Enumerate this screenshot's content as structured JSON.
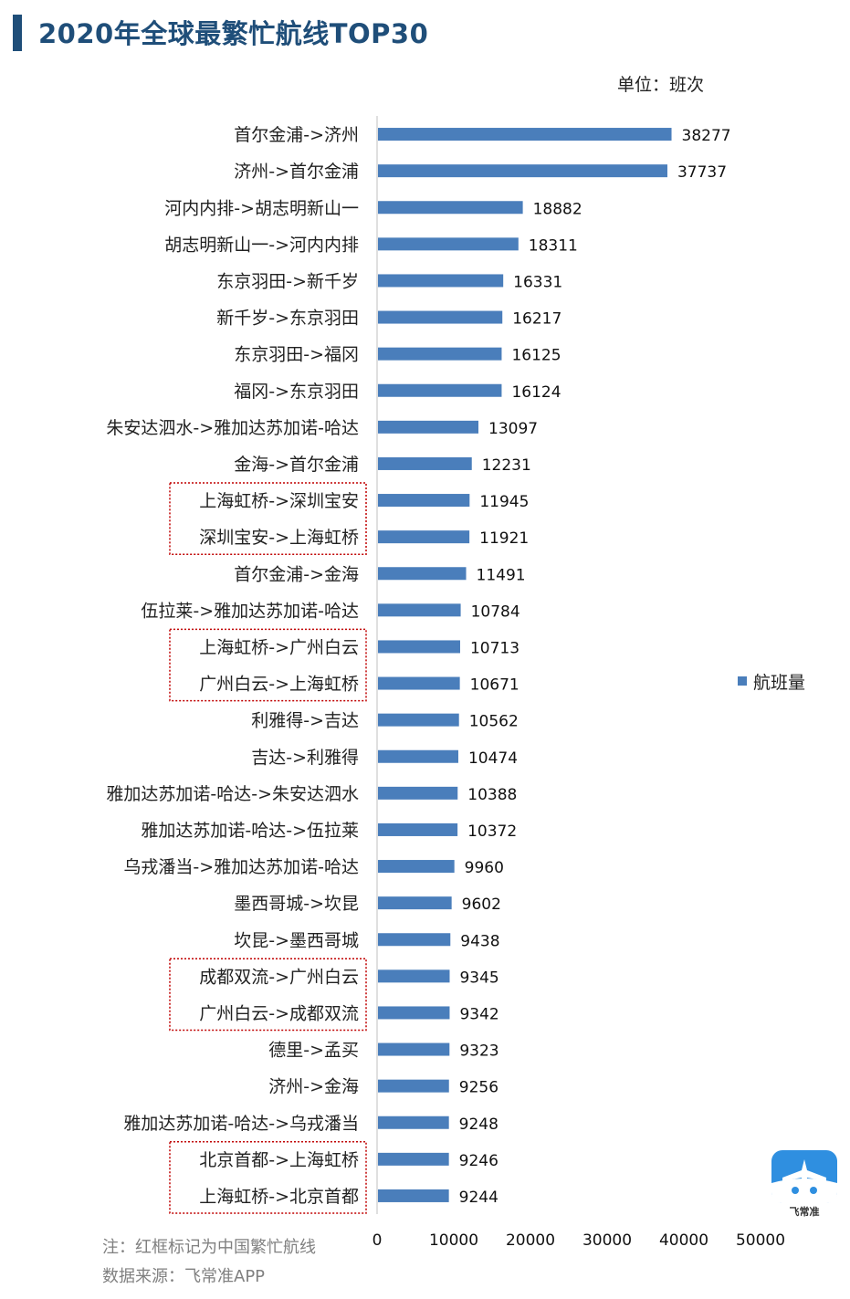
{
  "header": {
    "title": "2020年全球最繁忙航线TOP30",
    "unit": "单位：班次"
  },
  "legend": {
    "label": "航班量"
  },
  "footer": {
    "note": "注：红框标记为中国繁忙航线",
    "source": "数据来源：飞常准APP"
  },
  "logo": {
    "text": "飞常准",
    "icon": "airplane-icon",
    "color": "#2F8FE0"
  },
  "colors": {
    "bar": "#4A7EBB",
    "highlight_box": "#C00000",
    "title": "#1F4E79"
  },
  "chart_data": {
    "type": "bar",
    "orientation": "horizontal",
    "title": "2020年全球最繁忙航线TOP30",
    "xlim": [
      0,
      50000
    ],
    "xticks": [
      0,
      10000,
      20000,
      30000,
      40000,
      50000
    ],
    "legend_position": "right",
    "categories": [
      "首尔金浦->济州",
      "济州->首尔金浦",
      "河内内排->胡志明新山一",
      "胡志明新山一->河内内排",
      "东京羽田->新千岁",
      "新千岁->东京羽田",
      "东京羽田->福冈",
      "福冈->东京羽田",
      "朱安达泗水->雅加达苏加诺-哈达",
      "金海->首尔金浦",
      "上海虹桥->深圳宝安",
      "深圳宝安->上海虹桥",
      "首尔金浦->金海",
      "伍拉莱->雅加达苏加诺-哈达",
      "上海虹桥->广州白云",
      "广州白云->上海虹桥",
      "利雅得->吉达",
      "吉达->利雅得",
      "雅加达苏加诺-哈达->朱安达泗水",
      "雅加达苏加诺-哈达->伍拉莱",
      "乌戎潘当->雅加达苏加诺-哈达",
      "墨西哥城->坎昆",
      "坎昆->墨西哥城",
      "成都双流->广州白云",
      "广州白云->成都双流",
      "德里->孟买",
      "济州->金海",
      "雅加达苏加诺-哈达->乌戎潘当",
      "北京首都->上海虹桥",
      "上海虹桥->北京首都"
    ],
    "series": [
      {
        "name": "航班量",
        "values": [
          38277,
          37737,
          18882,
          18311,
          16331,
          16217,
          16125,
          16124,
          13097,
          12231,
          11945,
          11921,
          11491,
          10784,
          10713,
          10671,
          10562,
          10474,
          10388,
          10372,
          9960,
          9602,
          9438,
          9345,
          9342,
          9323,
          9256,
          9248,
          9246,
          9244
        ]
      }
    ],
    "highlight_groups": [
      [
        10,
        11
      ],
      [
        14,
        15
      ],
      [
        23,
        24
      ],
      [
        28,
        29
      ]
    ]
  }
}
